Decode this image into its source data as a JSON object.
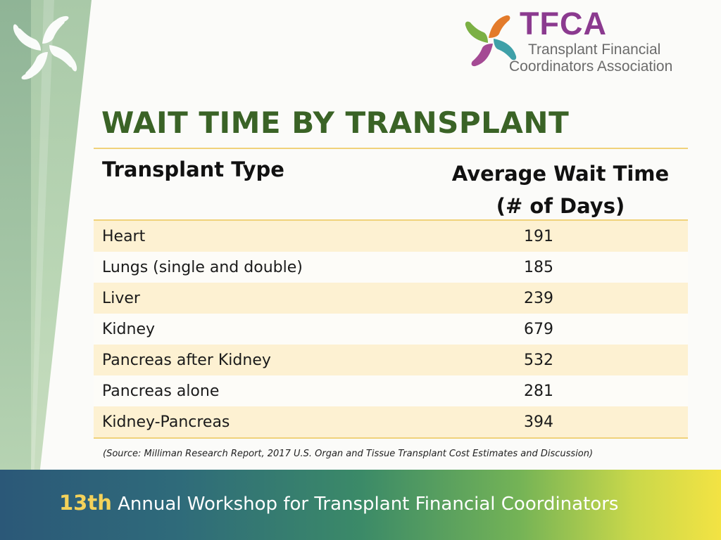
{
  "logo": {
    "name": "TFCA",
    "subtitle_line1": "Transplant Financial",
    "subtitle_line2": "Coordinators Association"
  },
  "slide": {
    "title": "WAIT TIME BY TRANSPLANT"
  },
  "table": {
    "headers": {
      "type": "Transplant Type",
      "wait_line1": "Average Wait Time",
      "wait_line2": "(# of Days)"
    },
    "rows": [
      {
        "type": "Heart",
        "days": "191"
      },
      {
        "type": "Lungs (single and double)",
        "days": "185"
      },
      {
        "type": "Liver",
        "days": "239"
      },
      {
        "type": "Kidney",
        "days": "679"
      },
      {
        "type": "Pancreas after Kidney",
        "days": "532"
      },
      {
        "type": "Pancreas alone",
        "days": "281"
      },
      {
        "type": "Kidney-Pancreas",
        "days": "394"
      }
    ]
  },
  "source": "(Source:  Milliman Research Report, 2017 U.S. Organ and Tissue Transplant Cost Estimates and Discussion)",
  "footer": {
    "number": "13th",
    "text": " Annual Workshop for Transplant Financial Coordinators"
  },
  "colors": {
    "title_green": "#3a6326",
    "logo_purple": "#8b3a8f",
    "row_highlight": "#fdf1d2",
    "rule_gold": "#f0d27a"
  },
  "icons": [
    "hands-logo-icon",
    "tfca-hands-icon"
  ]
}
